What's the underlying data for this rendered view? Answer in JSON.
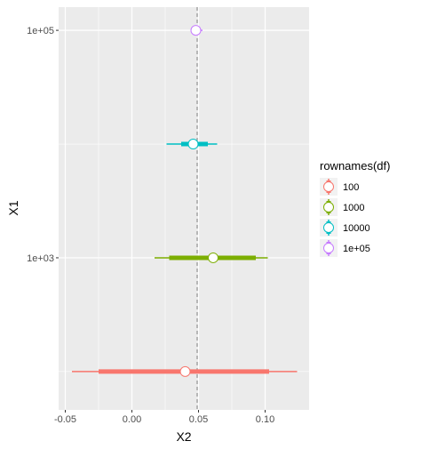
{
  "chart_data": {
    "type": "scatter",
    "subtype": "forest-plot-pointrange",
    "title": "",
    "xlabel": "X2",
    "ylabel": "X1",
    "x_ticks": [
      -0.05,
      0.0,
      0.05,
      0.1
    ],
    "x_tick_labels": [
      "-0.05",
      "0.00",
      "0.05",
      "0.10"
    ],
    "y_scale": "log10",
    "y_ticks": [
      1000,
      100000
    ],
    "y_tick_labels": [
      "1e+03",
      "1e+05"
    ],
    "xlim": [
      -0.055,
      0.133
    ],
    "ylim": [
      46,
      160000
    ],
    "grid": true,
    "reference_line": {
      "x": 0.049,
      "style": "dashed",
      "color": "#808080"
    },
    "legend": {
      "title": "rownames(df)",
      "position": "right",
      "entries": [
        "100",
        "1000",
        "10000",
        "1e+05"
      ]
    },
    "series": [
      {
        "name": "100",
        "color": "#F8766D",
        "y": 100,
        "estimate": 0.04,
        "inner_low": -0.025,
        "inner_high": 0.103,
        "outer_low": -0.045,
        "outer_high": 0.124
      },
      {
        "name": "1000",
        "color": "#7CAE00",
        "y": 1000,
        "estimate": 0.061,
        "inner_low": 0.028,
        "inner_high": 0.093,
        "outer_low": 0.017,
        "outer_high": 0.102
      },
      {
        "name": "10000",
        "color": "#00BFC4",
        "y": 10000,
        "estimate": 0.046,
        "inner_low": 0.037,
        "inner_high": 0.057,
        "outer_low": 0.026,
        "outer_high": 0.064
      },
      {
        "name": "1e+05",
        "color": "#C77CFF",
        "y": 100000,
        "estimate": 0.048,
        "inner_low": 0.046,
        "inner_high": 0.051,
        "outer_low": 0.044,
        "outer_high": 0.053
      }
    ]
  }
}
